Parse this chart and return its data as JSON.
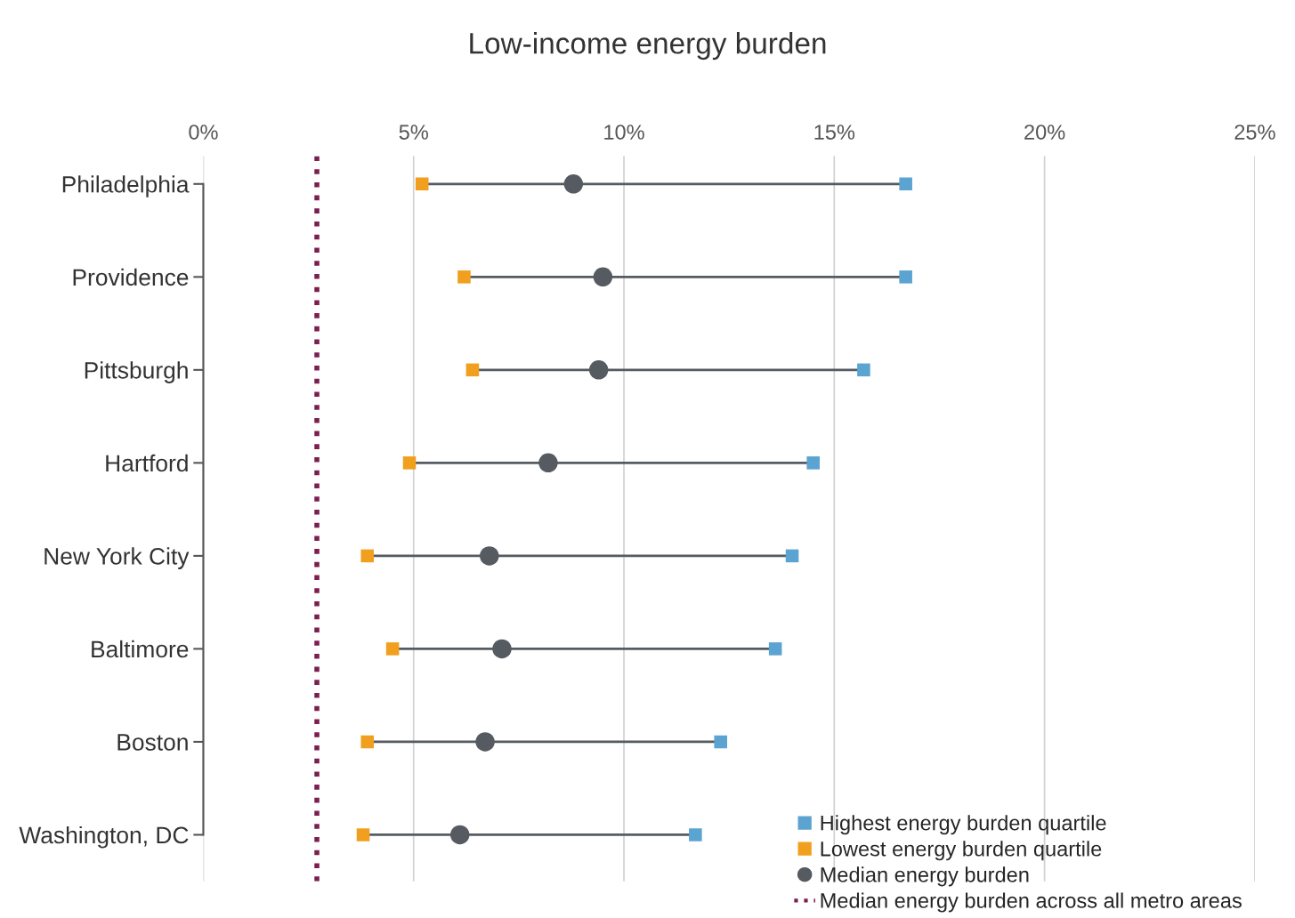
{
  "chart_data": {
    "type": "scatter",
    "orientation": "horizontal",
    "title": "Low-income energy burden",
    "categories": [
      "Philadelphia",
      "Providence",
      "Pittsburgh",
      "Hartford",
      "New York City",
      "Baltimore",
      "Boston",
      "Washington, DC"
    ],
    "series": [
      {
        "name": "Highest energy burden quartile",
        "color": "#5ba3d0",
        "marker": "square",
        "values": [
          16.7,
          16.7,
          15.7,
          14.5,
          14.0,
          13.6,
          12.3,
          11.7
        ]
      },
      {
        "name": "Lowest energy burden quartile",
        "color": "#f0a01e",
        "marker": "square",
        "values": [
          5.2,
          6.2,
          6.4,
          4.9,
          3.9,
          4.5,
          3.9,
          3.8
        ]
      },
      {
        "name": "Median energy burden",
        "color": "#555b61",
        "marker": "circle",
        "values": [
          8.8,
          9.5,
          9.4,
          8.2,
          6.8,
          7.1,
          6.7,
          6.1
        ]
      }
    ],
    "ref_lines": [
      {
        "axis": "x",
        "value": 2.7,
        "label": "Median energy burden across all metro areas",
        "color": "#7b1f4f",
        "line_style": "dotted"
      }
    ],
    "xlim": [
      0,
      25
    ],
    "xticks": [
      {
        "value": 0,
        "label": "0%"
      },
      {
        "value": 5,
        "label": "5%"
      },
      {
        "value": 10,
        "label": "10%"
      },
      {
        "value": 15,
        "label": "15%"
      },
      {
        "value": 20,
        "label": "20%"
      },
      {
        "value": 25,
        "label": "25%"
      }
    ],
    "grid": "x",
    "legend": "bottom right"
  }
}
